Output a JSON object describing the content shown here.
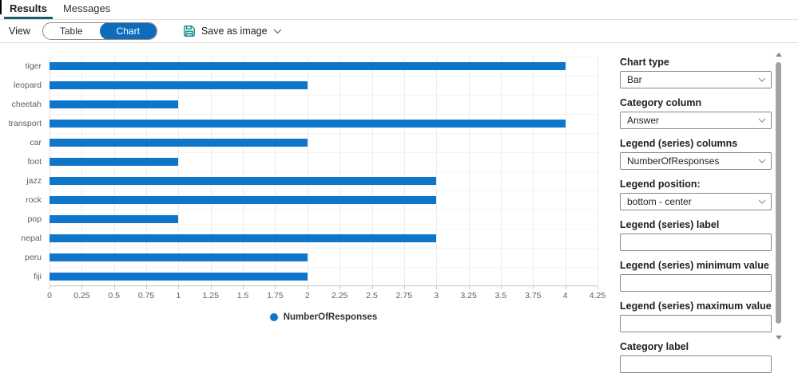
{
  "tabs": {
    "results": "Results",
    "messages": "Messages"
  },
  "toolbar": {
    "view_label": "View",
    "table_button": "Table",
    "chart_button": "Chart",
    "save_as_image": "Save as image"
  },
  "panel": {
    "fields": [
      {
        "label": "Chart type",
        "type": "select",
        "value": "Bar"
      },
      {
        "label": "Category column",
        "type": "select",
        "value": "Answer"
      },
      {
        "label": "Legend (series) columns",
        "type": "select",
        "value": "NumberOfResponses"
      },
      {
        "label": "Legend position:",
        "type": "select",
        "value": "bottom - center"
      },
      {
        "label": "Legend (series) label",
        "type": "input",
        "value": ""
      },
      {
        "label": "Legend (series) minimum value",
        "type": "input",
        "value": ""
      },
      {
        "label": "Legend (series) maximum value",
        "type": "input",
        "value": ""
      },
      {
        "label": "Category label",
        "type": "input",
        "value": ""
      }
    ]
  },
  "legend": {
    "label": "NumberOfResponses"
  },
  "colors": {
    "bar": "#0d76cb",
    "accent_pill": "#0f6cbd",
    "tab_underline": "#145e70",
    "save_icon": "#038387"
  },
  "chart_data": {
    "type": "bar",
    "orientation": "horizontal",
    "title": "",
    "xlabel": "",
    "ylabel": "",
    "categories": [
      "tiger",
      "leopard",
      "cheetah",
      "transport",
      "car",
      "foot",
      "jazz",
      "rock",
      "pop",
      "nepal",
      "peru",
      "fiji"
    ],
    "series": [
      {
        "name": "NumberOfResponses",
        "color": "#0d76cb",
        "values": [
          4,
          2,
          1,
          4,
          2,
          1,
          3,
          3,
          1,
          3,
          2,
          2
        ]
      }
    ],
    "xlim": [
      0,
      4.25
    ],
    "xtick_step": 0.25,
    "grid": "vertical",
    "legend_position": "bottom-center"
  }
}
